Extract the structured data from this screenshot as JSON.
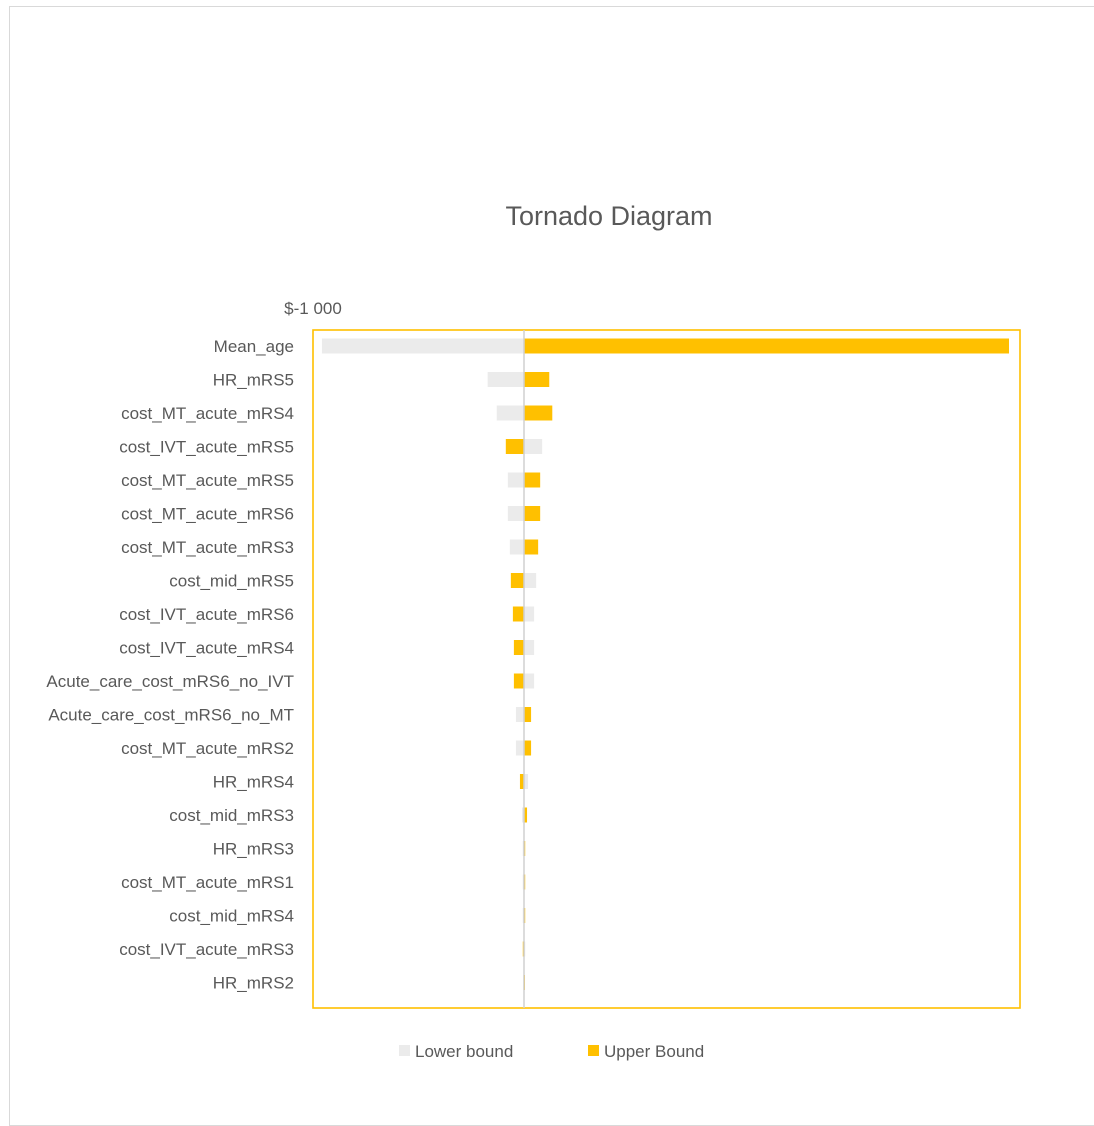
{
  "chart_data": {
    "type": "bar",
    "orientation": "horizontal",
    "title": "Tornado Diagram",
    "axis_tick_label": "$-1 000",
    "categories": [
      "Mean_age",
      "HR_mRS5",
      "cost_MT_acute_mRS4",
      "cost_IVT_acute_mRS5",
      "cost_MT_acute_mRS5",
      "cost_MT_acute_mRS6",
      "cost_MT_acute_mRS3",
      "cost_mid_mRS5",
      "cost_IVT_acute_mRS6",
      "cost_IVT_acute_mRS4",
      "Acute_care_cost_mRS6_no_IVT",
      "Acute_care_cost_mRS6_no_MT",
      "cost_MT_acute_mRS2",
      "HR_mRS4",
      "cost_mid_mRS3",
      "HR_mRS3",
      "cost_MT_acute_mRS1",
      "cost_mid_mRS4",
      "cost_IVT_acute_mRS3",
      "HR_mRS2"
    ],
    "series": [
      {
        "name": "Lower bound",
        "color": "#ebebeb",
        "values": [
          -1000,
          -180,
          -135,
          90,
          -80,
          -80,
          -70,
          60,
          50,
          50,
          50,
          -40,
          -40,
          20,
          -10,
          -6,
          -6,
          -6,
          6,
          -4
        ]
      },
      {
        "name": "Upper Bound",
        "color": "#ffc000",
        "values": [
          2400,
          125,
          140,
          -90,
          80,
          80,
          70,
          -65,
          -55,
          -50,
          -50,
          35,
          35,
          -20,
          15,
          6,
          6,
          6,
          -6,
          4
        ]
      }
    ],
    "xlim": [
      -1050,
      2500
    ],
    "grid": false,
    "legend_position": "bottom"
  },
  "colors": {
    "plot_border": "#ffc000",
    "zero_line": "#d0d0d0",
    "frame_border": "#d9d9d9",
    "text": "#595959"
  }
}
